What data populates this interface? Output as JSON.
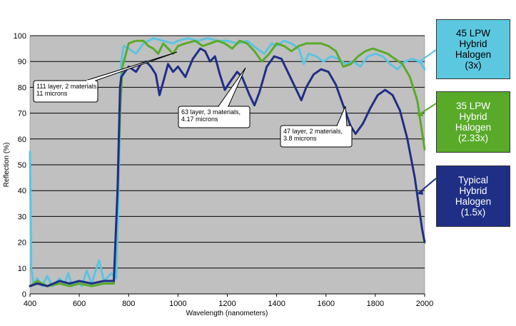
{
  "chart_data": {
    "type": "line",
    "title": "",
    "xlabel": "Wavelength  (nanometers)",
    "ylabel": "Reflection (%)",
    "xlim": [
      400,
      2000
    ],
    "ylim": [
      0,
      100
    ],
    "xticks": [
      400,
      600,
      800,
      1000,
      1200,
      1400,
      1600,
      1800,
      2000
    ],
    "yticks": [
      0,
      10,
      20,
      30,
      40,
      50,
      60,
      70,
      80,
      90,
      100
    ],
    "grid": "horizontal",
    "plot_background": "#c0c0c0",
    "series": [
      {
        "name": "Typical Hybrid Halogen (1.5x)",
        "color": "#1f2f86",
        "points": [
          [
            400,
            3
          ],
          [
            430,
            4
          ],
          [
            470,
            3
          ],
          [
            520,
            5
          ],
          [
            560,
            4
          ],
          [
            600,
            5
          ],
          [
            650,
            4
          ],
          [
            700,
            5
          ],
          [
            740,
            5
          ],
          [
            755,
            40
          ],
          [
            765,
            80
          ],
          [
            770,
            84
          ],
          [
            800,
            88
          ],
          [
            830,
            86
          ],
          [
            850,
            89
          ],
          [
            870,
            90
          ],
          [
            890,
            88
          ],
          [
            910,
            85
          ],
          [
            925,
            77
          ],
          [
            940,
            82
          ],
          [
            960,
            89
          ],
          [
            980,
            86
          ],
          [
            1000,
            88
          ],
          [
            1030,
            84
          ],
          [
            1060,
            91
          ],
          [
            1090,
            95
          ],
          [
            1110,
            94
          ],
          [
            1130,
            90
          ],
          [
            1150,
            92
          ],
          [
            1170,
            85
          ],
          [
            1190,
            79
          ],
          [
            1210,
            82
          ],
          [
            1240,
            86
          ],
          [
            1260,
            84
          ],
          [
            1290,
            77
          ],
          [
            1310,
            73
          ],
          [
            1330,
            78
          ],
          [
            1360,
            88
          ],
          [
            1390,
            92
          ],
          [
            1420,
            91
          ],
          [
            1450,
            85
          ],
          [
            1480,
            79
          ],
          [
            1500,
            75
          ],
          [
            1520,
            80
          ],
          [
            1550,
            85
          ],
          [
            1580,
            87
          ],
          [
            1610,
            86
          ],
          [
            1640,
            81
          ],
          [
            1670,
            73
          ],
          [
            1700,
            65
          ],
          [
            1720,
            62
          ],
          [
            1750,
            66
          ],
          [
            1780,
            72
          ],
          [
            1810,
            77
          ],
          [
            1840,
            79
          ],
          [
            1870,
            77
          ],
          [
            1900,
            71
          ],
          [
            1930,
            60
          ],
          [
            1960,
            45
          ],
          [
            1990,
            25
          ],
          [
            2000,
            20
          ]
        ]
      },
      {
        "name": "35 LPW Hybrid Halogen (2.33x)",
        "color": "#5aaa2a",
        "points": [
          [
            400,
            3
          ],
          [
            430,
            5
          ],
          [
            470,
            3
          ],
          [
            520,
            4
          ],
          [
            560,
            3
          ],
          [
            600,
            4
          ],
          [
            650,
            3
          ],
          [
            700,
            4
          ],
          [
            740,
            4
          ],
          [
            755,
            40
          ],
          [
            765,
            70
          ],
          [
            775,
            88
          ],
          [
            800,
            97
          ],
          [
            830,
            98
          ],
          [
            860,
            98
          ],
          [
            880,
            96
          ],
          [
            900,
            95
          ],
          [
            920,
            93
          ],
          [
            940,
            97
          ],
          [
            960,
            95
          ],
          [
            980,
            93
          ],
          [
            1000,
            96
          ],
          [
            1030,
            97
          ],
          [
            1070,
            98
          ],
          [
            1100,
            96
          ],
          [
            1130,
            97
          ],
          [
            1160,
            98
          ],
          [
            1190,
            97
          ],
          [
            1220,
            95
          ],
          [
            1250,
            98
          ],
          [
            1280,
            97
          ],
          [
            1310,
            94
          ],
          [
            1340,
            90
          ],
          [
            1370,
            93
          ],
          [
            1400,
            97
          ],
          [
            1430,
            96
          ],
          [
            1460,
            94
          ],
          [
            1490,
            96
          ],
          [
            1520,
            97
          ],
          [
            1550,
            97
          ],
          [
            1580,
            97
          ],
          [
            1610,
            96
          ],
          [
            1640,
            94
          ],
          [
            1670,
            88
          ],
          [
            1700,
            89
          ],
          [
            1730,
            92
          ],
          [
            1760,
            94
          ],
          [
            1790,
            95
          ],
          [
            1820,
            94
          ],
          [
            1850,
            93
          ],
          [
            1880,
            91
          ],
          [
            1910,
            89
          ],
          [
            1940,
            84
          ],
          [
            1970,
            75
          ],
          [
            2000,
            56
          ]
        ]
      },
      {
        "name": "45 LPW Hybrid Halogen (3x)",
        "color": "#5cc4e0",
        "points": [
          [
            400,
            55
          ],
          [
            405,
            10
          ],
          [
            415,
            4
          ],
          [
            430,
            6
          ],
          [
            450,
            3
          ],
          [
            470,
            7
          ],
          [
            490,
            3
          ],
          [
            520,
            6
          ],
          [
            540,
            4
          ],
          [
            555,
            8
          ],
          [
            570,
            3
          ],
          [
            590,
            5
          ],
          [
            610,
            3
          ],
          [
            630,
            9
          ],
          [
            650,
            4
          ],
          [
            680,
            13
          ],
          [
            700,
            5
          ],
          [
            730,
            8
          ],
          [
            750,
            6
          ],
          [
            760,
            45
          ],
          [
            770,
            90
          ],
          [
            780,
            96
          ],
          [
            800,
            95
          ],
          [
            830,
            93
          ],
          [
            860,
            97
          ],
          [
            900,
            99
          ],
          [
            940,
            98
          ],
          [
            980,
            97
          ],
          [
            1000,
            98
          ],
          [
            1040,
            99
          ],
          [
            1080,
            98
          ],
          [
            1120,
            99
          ],
          [
            1160,
            98
          ],
          [
            1200,
            98
          ],
          [
            1240,
            97
          ],
          [
            1280,
            98
          ],
          [
            1320,
            95
          ],
          [
            1350,
            93
          ],
          [
            1380,
            97
          ],
          [
            1400,
            96
          ],
          [
            1430,
            98
          ],
          [
            1460,
            97
          ],
          [
            1490,
            95
          ],
          [
            1510,
            89
          ],
          [
            1530,
            93
          ],
          [
            1560,
            92
          ],
          [
            1590,
            90
          ],
          [
            1620,
            92
          ],
          [
            1650,
            91
          ],
          [
            1680,
            89
          ],
          [
            1710,
            90
          ],
          [
            1740,
            88
          ],
          [
            1770,
            92
          ],
          [
            1800,
            93
          ],
          [
            1830,
            92
          ],
          [
            1860,
            89
          ],
          [
            1890,
            87
          ],
          [
            1920,
            90
          ],
          [
            1950,
            91
          ],
          [
            1980,
            90
          ],
          [
            2000,
            87
          ]
        ]
      }
    ],
    "annotations": [
      {
        "lines": [
          "111 layer, 2 materials,",
          "11 microns"
        ]
      },
      {
        "lines": [
          "63 layer, 3 materials,",
          "4.17 microns"
        ]
      },
      {
        "lines": [
          "47 layer, 2 materials,",
          "3.8 microns"
        ]
      }
    ]
  },
  "legend": [
    {
      "label": "45 LPW\nHybrid\nHalogen\n(3x)",
      "bg": "#5cc8e0",
      "fg": "#000000"
    },
    {
      "label": "35 LPW\nHybrid\nHalogen\n(2.33x)",
      "bg": "#5aaa2a",
      "fg": "#ffffff"
    },
    {
      "label": "Typical\nHybrid\nHalogen\n(1.5x)",
      "bg": "#1f2f86",
      "fg": "#ffffff"
    }
  ]
}
